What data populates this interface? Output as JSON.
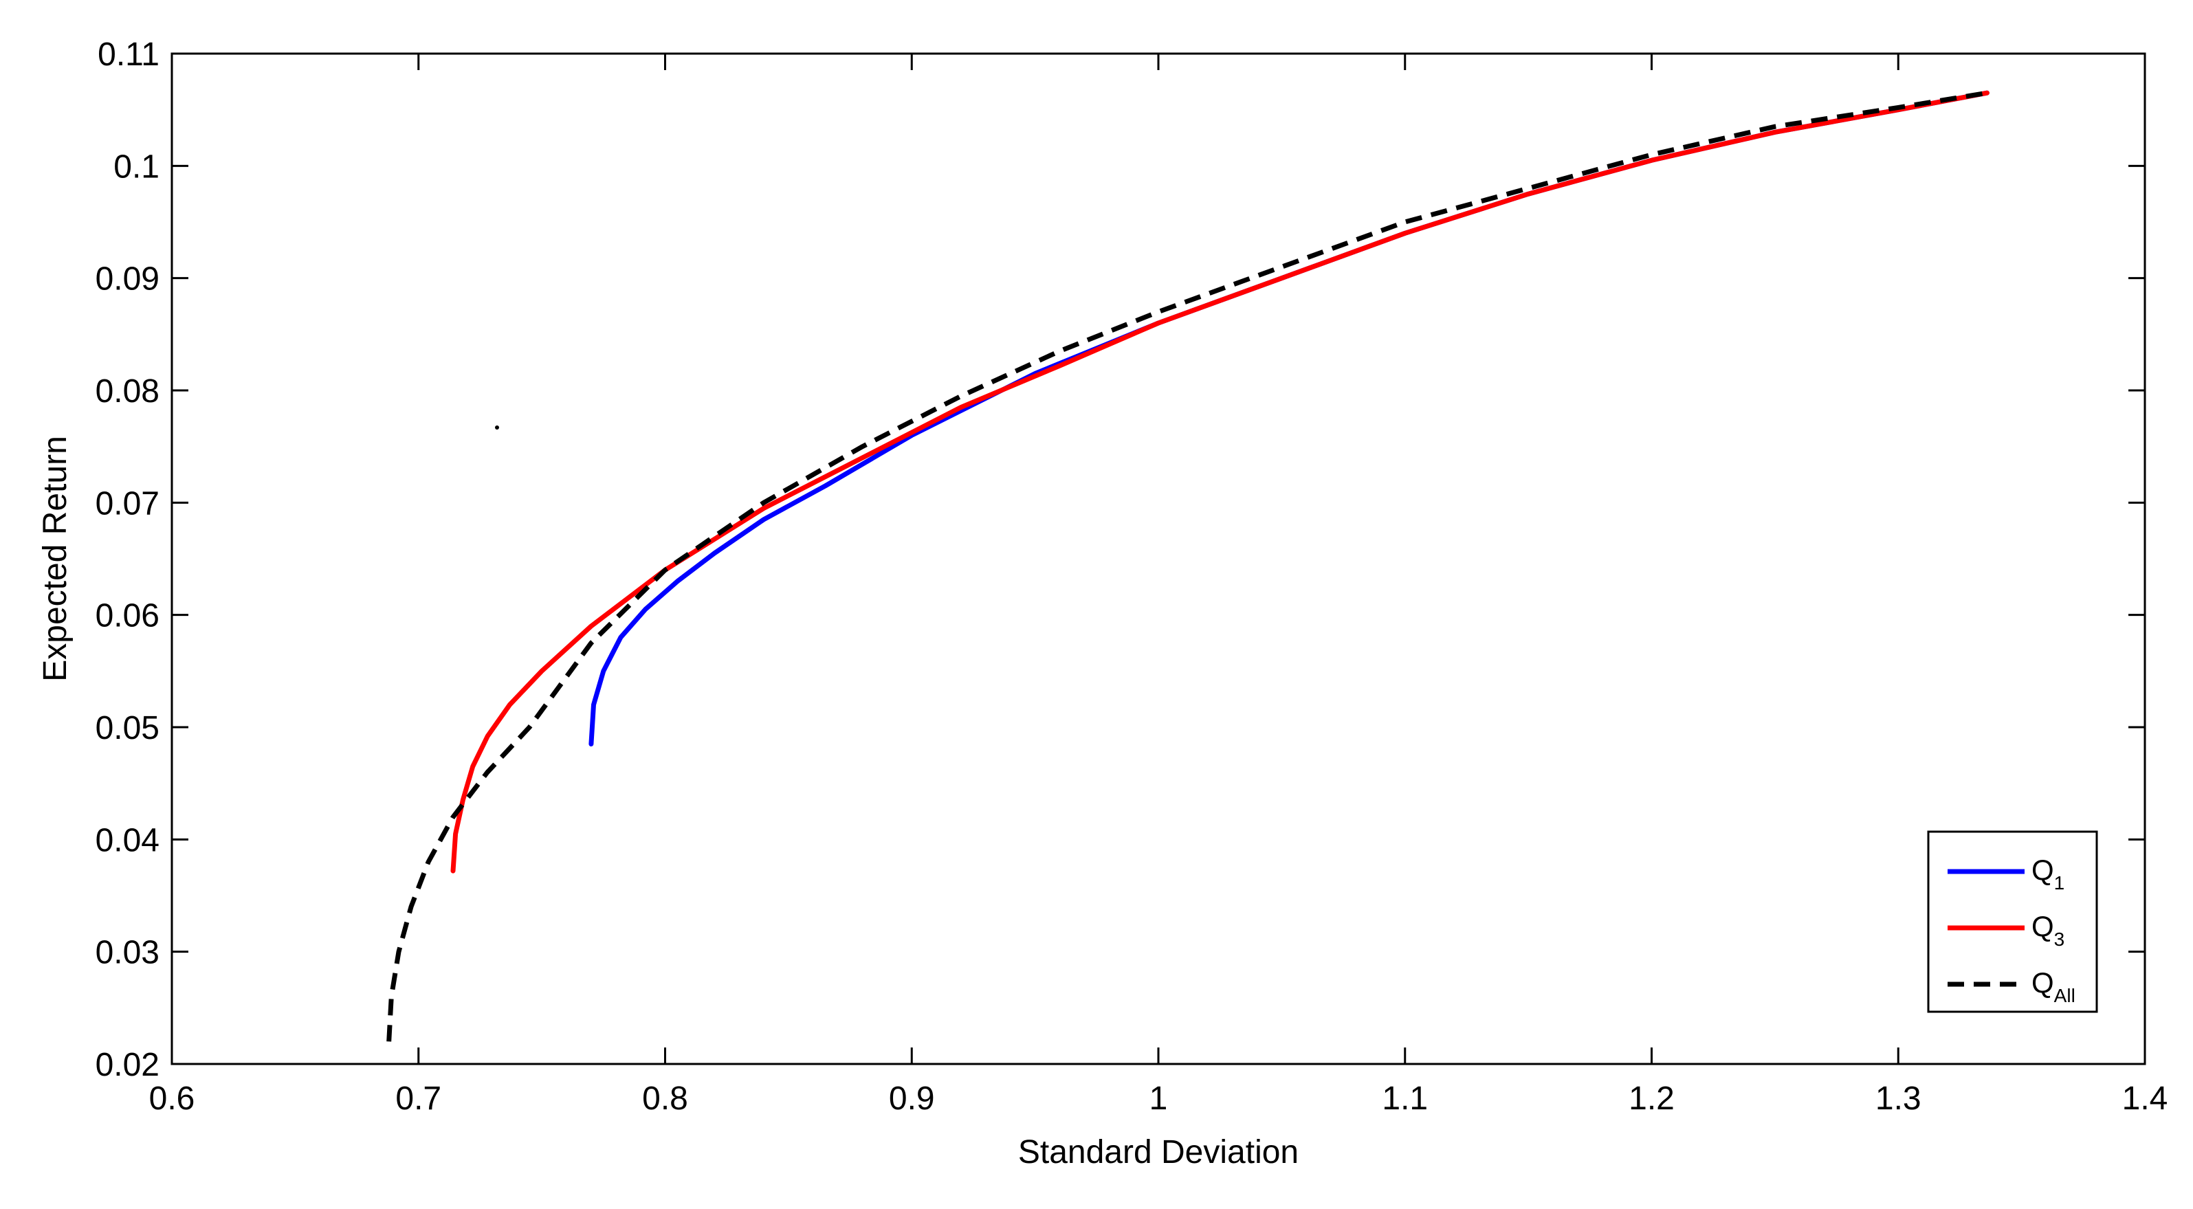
{
  "chart_data": {
    "type": "line",
    "title": "",
    "xlabel": "Standard Deviation",
    "ylabel": "Expected Return",
    "xlim": [
      0.6,
      1.4
    ],
    "ylim": [
      0.02,
      0.11
    ],
    "xticks": [
      0.6,
      0.7,
      0.8,
      0.9,
      1.0,
      1.1,
      1.2,
      1.3,
      1.4
    ],
    "xtick_labels": [
      "0.6",
      "0.7",
      "0.8",
      "0.9",
      "1",
      "1.1",
      "1.2",
      "1.3",
      "1.4"
    ],
    "yticks": [
      0.02,
      0.03,
      0.04,
      0.05,
      0.06,
      0.07,
      0.08,
      0.09,
      0.1,
      0.11
    ],
    "ytick_labels": [
      "0.02",
      "0.03",
      "0.04",
      "0.05",
      "0.06",
      "0.07",
      "0.08",
      "0.09",
      "0.1",
      "0.11"
    ],
    "grid": false,
    "legend_position": "bottom-right",
    "series": [
      {
        "name": "Q",
        "subscript": "1",
        "color": "#0000ff",
        "style": "solid",
        "x": [
          0.77,
          0.771,
          0.775,
          0.782,
          0.792,
          0.805,
          0.82,
          0.84,
          0.865,
          0.9,
          0.95,
          1.0,
          1.05,
          1.1,
          1.15,
          1.2,
          1.25,
          1.3,
          1.336
        ],
        "y": [
          0.0485,
          0.052,
          0.055,
          0.058,
          0.0605,
          0.063,
          0.0655,
          0.0685,
          0.0715,
          0.076,
          0.0815,
          0.086,
          0.09,
          0.094,
          0.0975,
          0.1005,
          0.103,
          0.105,
          0.1065
        ]
      },
      {
        "name": "Q",
        "subscript": "3",
        "color": "#ff0000",
        "style": "solid",
        "x": [
          0.714,
          0.715,
          0.718,
          0.722,
          0.728,
          0.737,
          0.75,
          0.77,
          0.8,
          0.84,
          0.88,
          0.92,
          0.96,
          1.0,
          1.05,
          1.1,
          1.15,
          1.2,
          1.25,
          1.3,
          1.336
        ],
        "y": [
          0.0372,
          0.0405,
          0.0435,
          0.0465,
          0.0492,
          0.052,
          0.055,
          0.059,
          0.064,
          0.0695,
          0.074,
          0.0785,
          0.0822,
          0.086,
          0.09,
          0.094,
          0.0975,
          0.1005,
          0.103,
          0.105,
          0.1065
        ]
      },
      {
        "name": "Q",
        "subscript": "All",
        "color": "#000000",
        "style": "dashed",
        "x": [
          0.688,
          0.689,
          0.692,
          0.697,
          0.704,
          0.714,
          0.728,
          0.745,
          0.77,
          0.8,
          0.84,
          0.88,
          0.92,
          0.96,
          1.0,
          1.05,
          1.1,
          1.15,
          1.2,
          1.25,
          1.3,
          1.336
        ],
        "y": [
          0.022,
          0.026,
          0.03,
          0.034,
          0.038,
          0.042,
          0.046,
          0.05,
          0.0575,
          0.064,
          0.07,
          0.075,
          0.0795,
          0.0835,
          0.087,
          0.091,
          0.095,
          0.098,
          0.101,
          0.1035,
          0.1052,
          0.1065
        ]
      }
    ]
  }
}
